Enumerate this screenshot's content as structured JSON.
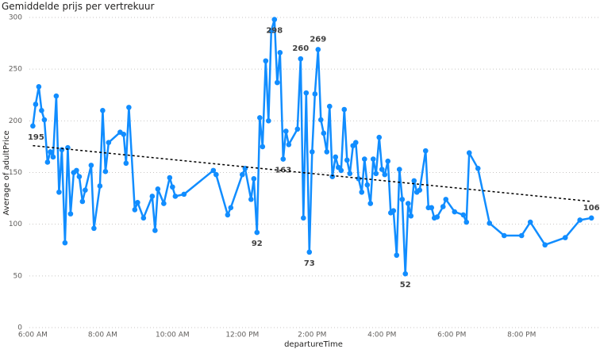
{
  "chart_data": {
    "type": "line",
    "title": "Gemiddelde prijs per vertrekuur",
    "x_label": "departureTime",
    "y_label": "Average of adultPrice",
    "xlim": [
      5.9,
      22.2
    ],
    "xticks": [
      {
        "value": 6,
        "label": "6:00 AM"
      },
      {
        "value": 8,
        "label": "8:00 AM"
      },
      {
        "value": 10,
        "label": "10:00 AM"
      },
      {
        "value": 12,
        "label": "12:00 PM"
      },
      {
        "value": 14,
        "label": "2:00 PM"
      },
      {
        "value": 16,
        "label": "4:00 PM"
      },
      {
        "value": 18,
        "label": "6:00 PM"
      },
      {
        "value": 20,
        "label": "8:00 PM"
      }
    ],
    "ylim": [
      0,
      300
    ],
    "yticks": [
      0,
      50,
      100,
      150,
      200,
      250,
      300
    ],
    "grid": true,
    "series": [
      {
        "color": "#118dff",
        "x": [
          6.0,
          6.08,
          6.17,
          6.25,
          6.33,
          6.42,
          6.5,
          6.58,
          6.67,
          6.75,
          6.83,
          6.92,
          7.0,
          7.08,
          7.17,
          7.25,
          7.33,
          7.42,
          7.5,
          7.67,
          7.75,
          7.92,
          8.0,
          8.08,
          8.17,
          8.5,
          8.6,
          8.67,
          8.75,
          8.92,
          9.0,
          9.17,
          9.42,
          9.5,
          9.58,
          9.75,
          9.92,
          10.0,
          10.08,
          10.33,
          11.17,
          11.25,
          11.58,
          11.67,
          12.0,
          12.08,
          12.25,
          12.33,
          12.42,
          12.5,
          12.58,
          12.67,
          12.75,
          12.83,
          12.92,
          13.0,
          13.08,
          13.17,
          13.25,
          13.33,
          13.58,
          13.67,
          13.75,
          13.83,
          13.92,
          14.0,
          14.08,
          14.17,
          14.25,
          14.33,
          14.42,
          14.5,
          14.58,
          14.67,
          14.75,
          14.83,
          14.92,
          15.0,
          15.08,
          15.17,
          15.25,
          15.33,
          15.42,
          15.5,
          15.58,
          15.67,
          15.75,
          15.83,
          15.92,
          16.0,
          16.08,
          16.17,
          16.25,
          16.33,
          16.42,
          16.5,
          16.58,
          16.67,
          16.75,
          16.83,
          16.92,
          17.0,
          17.08,
          17.25,
          17.33,
          17.42,
          17.5,
          17.58,
          17.75,
          17.83,
          18.08,
          18.33,
          18.42,
          18.5,
          18.75,
          19.08,
          19.5,
          20.0,
          20.25,
          20.67,
          21.25,
          21.67,
          22.0
        ],
        "values": [
          195,
          216,
          233,
          210,
          201,
          160,
          170,
          165,
          224,
          131,
          172,
          82,
          174,
          110,
          150,
          152,
          146,
          122,
          133,
          157,
          96,
          137,
          210,
          151,
          179,
          189,
          187,
          159,
          213,
          114,
          121,
          106,
          127,
          94,
          134,
          120,
          145,
          136,
          127,
          129,
          152,
          148,
          109,
          116,
          148,
          154,
          124,
          144,
          92,
          203,
          175,
          258,
          200,
          287,
          298,
          237,
          266,
          163,
          190,
          177,
          192,
          260,
          106,
          227,
          73,
          170,
          226,
          269,
          201,
          188,
          170,
          214,
          146,
          165,
          155,
          152,
          211,
          162,
          149,
          176,
          179,
          144,
          131,
          163,
          138,
          120,
          163,
          149,
          184,
          153,
          148,
          161,
          111,
          113,
          70,
          153,
          124,
          52,
          120,
          108,
          142,
          131,
          133,
          171,
          116,
          116,
          106,
          107,
          117,
          124,
          112,
          109,
          102,
          169,
          154,
          101,
          89,
          89,
          102,
          80,
          87,
          104,
          106
        ],
        "value_labels": [
          "195",
          null,
          null,
          null,
          null,
          null,
          null,
          null,
          null,
          null,
          null,
          null,
          null,
          null,
          null,
          null,
          null,
          null,
          null,
          null,
          null,
          null,
          null,
          null,
          null,
          null,
          null,
          null,
          null,
          null,
          null,
          null,
          null,
          null,
          null,
          null,
          null,
          null,
          null,
          null,
          null,
          null,
          null,
          null,
          null,
          null,
          null,
          null,
          "92",
          null,
          null,
          null,
          null,
          null,
          "298",
          null,
          null,
          "163",
          null,
          null,
          null,
          "260",
          null,
          null,
          "73",
          null,
          null,
          "269",
          null,
          null,
          null,
          null,
          null,
          null,
          null,
          null,
          null,
          null,
          null,
          null,
          null,
          null,
          null,
          null,
          null,
          null,
          null,
          null,
          null,
          null,
          null,
          null,
          null,
          null,
          null,
          null,
          null,
          "52",
          null,
          null,
          null,
          null,
          null,
          null,
          null,
          null,
          null,
          null,
          null,
          null,
          null,
          null,
          null,
          null,
          null,
          null,
          null,
          null,
          null,
          null,
          null,
          null,
          "106"
        ]
      }
    ],
    "trend_line": {
      "color": "#000000",
      "x": [
        6.0,
        22.0
      ],
      "values": [
        176,
        122
      ]
    }
  }
}
